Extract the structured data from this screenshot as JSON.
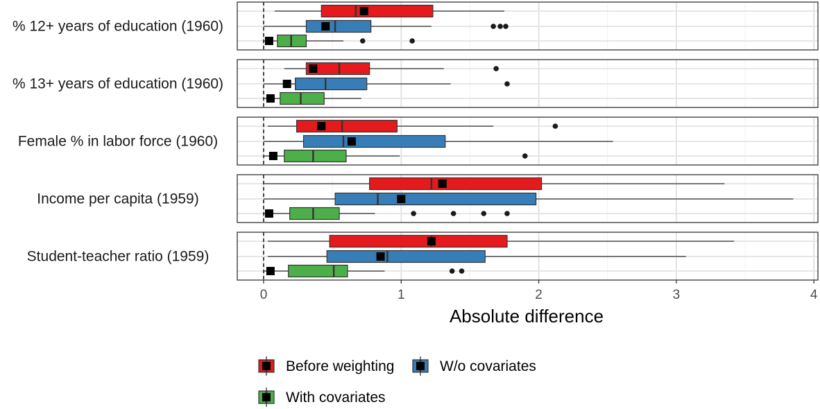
{
  "chart_data": {
    "type": "boxplot",
    "xlabel": "Absolute difference",
    "xlim": [
      0,
      4
    ],
    "xticks": [
      "0",
      "1",
      "2",
      "3",
      "4"
    ],
    "reference_line_x": 0,
    "legend_position": "bottom",
    "series": [
      {
        "name": "Before weighting",
        "color": "#E41A1C"
      },
      {
        "name": "W/o covariates",
        "color": "#377EB8"
      },
      {
        "name": "With covariates",
        "color": "#4DAF4A"
      }
    ],
    "panels": [
      {
        "label": "% 12+ years of education (1960)",
        "boxes": [
          {
            "series": "Before weighting",
            "whisker_low": 0.08,
            "q1": 0.42,
            "median": 0.67,
            "q3": 1.23,
            "whisker_high": 1.75,
            "mean": 0.73,
            "outliers": []
          },
          {
            "series": "W/o covariates",
            "whisker_low": 0.0,
            "q1": 0.31,
            "median": 0.52,
            "q3": 0.78,
            "whisker_high": 1.22,
            "mean": 0.45,
            "outliers": [
              1.67,
              1.72,
              1.76
            ]
          },
          {
            "series": "With covariates",
            "whisker_low": 0.0,
            "q1": 0.1,
            "median": 0.2,
            "q3": 0.31,
            "whisker_high": 0.58,
            "mean": 0.04,
            "outliers": [
              0.72,
              1.08
            ]
          }
        ]
      },
      {
        "label": "% 13+ years of education (1960)",
        "boxes": [
          {
            "series": "Before weighting",
            "whisker_low": 0.15,
            "q1": 0.31,
            "median": 0.55,
            "q3": 0.77,
            "whisker_high": 1.31,
            "mean": 0.36,
            "outliers": [
              1.69
            ]
          },
          {
            "series": "W/o covariates",
            "whisker_low": 0.0,
            "q1": 0.23,
            "median": 0.45,
            "q3": 0.75,
            "whisker_high": 1.36,
            "mean": 0.17,
            "outliers": [
              1.77
            ]
          },
          {
            "series": "With covariates",
            "whisker_low": 0.0,
            "q1": 0.12,
            "median": 0.27,
            "q3": 0.44,
            "whisker_high": 0.71,
            "mean": 0.05,
            "outliers": []
          }
        ]
      },
      {
        "label": "Female % in labor force (1960)",
        "boxes": [
          {
            "series": "Before weighting",
            "whisker_low": 0.03,
            "q1": 0.24,
            "median": 0.57,
            "q3": 0.97,
            "whisker_high": 1.67,
            "mean": 0.42,
            "outliers": [
              2.12
            ]
          },
          {
            "series": "W/o covariates",
            "whisker_low": 0.0,
            "q1": 0.29,
            "median": 0.58,
            "q3": 1.32,
            "whisker_high": 2.54,
            "mean": 0.64,
            "outliers": []
          },
          {
            "series": "With covariates",
            "whisker_low": 0.0,
            "q1": 0.15,
            "median": 0.36,
            "q3": 0.6,
            "whisker_high": 0.99,
            "mean": 0.07,
            "outliers": [
              1.9
            ]
          }
        ]
      },
      {
        "label": "Income per capita (1959)",
        "boxes": [
          {
            "series": "Before weighting",
            "whisker_low": 0.0,
            "q1": 0.77,
            "median": 1.22,
            "q3": 2.02,
            "whisker_high": 3.35,
            "mean": 1.3,
            "outliers": []
          },
          {
            "series": "W/o covariates",
            "whisker_low": 0.0,
            "q1": 0.52,
            "median": 0.83,
            "q3": 1.98,
            "whisker_high": 3.85,
            "mean": 1.0,
            "outliers": []
          },
          {
            "series": "With covariates",
            "whisker_low": 0.0,
            "q1": 0.19,
            "median": 0.36,
            "q3": 0.55,
            "whisker_high": 0.81,
            "mean": 0.04,
            "outliers": [
              1.09,
              1.38,
              1.6,
              1.77
            ]
          }
        ]
      },
      {
        "label": "Student-teacher ratio (1959)",
        "boxes": [
          {
            "series": "Before weighting",
            "whisker_low": 0.03,
            "q1": 0.48,
            "median": 1.22,
            "q3": 1.77,
            "whisker_high": 3.42,
            "mean": 1.22,
            "outliers": []
          },
          {
            "series": "W/o covariates",
            "whisker_low": 0.03,
            "q1": 0.46,
            "median": 0.9,
            "q3": 1.61,
            "whisker_high": 3.07,
            "mean": 0.85,
            "outliers": []
          },
          {
            "series": "With covariates",
            "whisker_low": 0.0,
            "q1": 0.18,
            "median": 0.51,
            "q3": 0.61,
            "whisker_high": 0.88,
            "mean": 0.05,
            "outliers": [
              1.37,
              1.44
            ]
          }
        ]
      }
    ]
  }
}
